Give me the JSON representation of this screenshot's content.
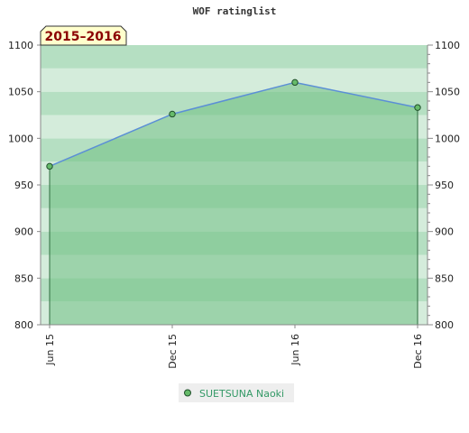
{
  "chart_data": {
    "type": "area",
    "title": "WOF ratinglist",
    "period_label": "2015–2016",
    "x_labels": [
      "Jun 15",
      "Dec 15",
      "Jun 16",
      "Dec 16"
    ],
    "y_ticks": [
      800,
      850,
      900,
      950,
      1000,
      1050,
      1100
    ],
    "ylim": [
      800,
      1100
    ],
    "legend_position": "bottom",
    "grid": true,
    "series": [
      {
        "name": "SUETSUNA Naoki",
        "x": [
          "Jun 15",
          "Dec 15",
          "Jun 16",
          "Dec 16"
        ],
        "values": [
          970,
          1026,
          1060,
          1033
        ]
      }
    ],
    "colors": {
      "line": "#5b8fd6",
      "fill": "#6fbf84",
      "marker": "#66bb6a",
      "marker_stroke": "#1f4f2a",
      "band_a": "#b5dfc2",
      "band_b": "#d4ecdb",
      "label_bg": "#ffffcc",
      "legend_bg": "#eeeeee"
    }
  }
}
